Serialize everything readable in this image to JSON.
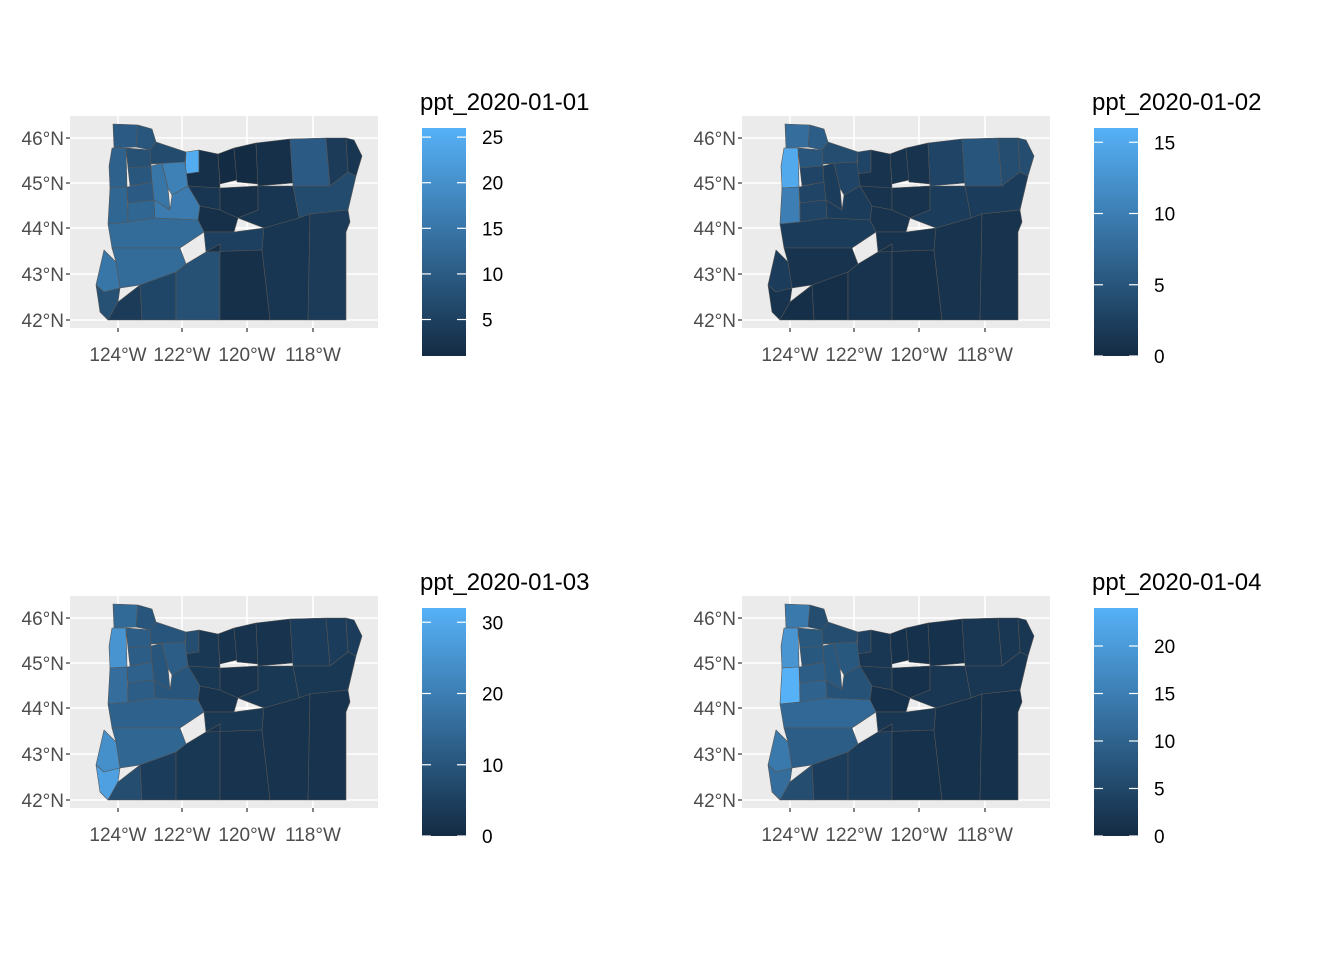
{
  "colors": {
    "panel_bg": "#EBEBEB",
    "grid": "#FFFFFF",
    "county_border": "#555555",
    "scale_low": "#132B43",
    "scale_high": "#56B1F7"
  },
  "chart_data": [
    {
      "type": "choropleth",
      "legend_title": "ppt_2020-01-01",
      "scale": {
        "min": 1,
        "max": 26,
        "breaks": [
          5,
          10,
          15,
          20,
          25
        ],
        "labels": [
          "5",
          "10",
          "15",
          "20",
          "25"
        ]
      },
      "y_ticks": [
        "46°N",
        "45°N",
        "44°N",
        "43°N",
        "42°N"
      ],
      "x_ticks": [
        "124°W",
        "122°W",
        "120°W",
        "118°W"
      ],
      "xlim": [
        -125,
        -116
      ],
      "ylim": [
        41.8,
        46.5
      ],
      "counties": [
        {
          "id": "clatsop",
          "value": 10
        },
        {
          "id": "columbia",
          "value": 9
        },
        {
          "id": "tillamook",
          "value": 11
        },
        {
          "id": "washington",
          "value": 8
        },
        {
          "id": "multnomah",
          "value": 7
        },
        {
          "id": "hood_river",
          "value": 25
        },
        {
          "id": "wasco",
          "value": 2
        },
        {
          "id": "sherman",
          "value": 1
        },
        {
          "id": "gilliam",
          "value": 1
        },
        {
          "id": "morrow",
          "value": 2
        },
        {
          "id": "umatilla",
          "value": 10
        },
        {
          "id": "union",
          "value": 4
        },
        {
          "id": "wallowa",
          "value": 3
        },
        {
          "id": "yamhill",
          "value": 9
        },
        {
          "id": "polk",
          "value": 10
        },
        {
          "id": "marion",
          "value": 15
        },
        {
          "id": "clackamas",
          "value": 17
        },
        {
          "id": "lincoln",
          "value": 12
        },
        {
          "id": "benton",
          "value": 12
        },
        {
          "id": "linn",
          "value": 16
        },
        {
          "id": "jefferson",
          "value": 3
        },
        {
          "id": "wheeler",
          "value": 2
        },
        {
          "id": "grant",
          "value": 3
        },
        {
          "id": "baker",
          "value": 7
        },
        {
          "id": "crook",
          "value": 2
        },
        {
          "id": "lane",
          "value": 13
        },
        {
          "id": "deschutes",
          "value": 5
        },
        {
          "id": "douglas",
          "value": 13
        },
        {
          "id": "coos",
          "value": 15
        },
        {
          "id": "curry",
          "value": 8
        },
        {
          "id": "josephine",
          "value": 4
        },
        {
          "id": "jackson",
          "value": 6
        },
        {
          "id": "klamath",
          "value": 8
        },
        {
          "id": "lake",
          "value": 2
        },
        {
          "id": "harney",
          "value": 3
        },
        {
          "id": "malheur",
          "value": 4
        }
      ]
    },
    {
      "type": "choropleth",
      "legend_title": "ppt_2020-01-02",
      "scale": {
        "min": 0,
        "max": 16,
        "breaks": [
          0,
          5,
          10,
          15
        ],
        "labels": [
          "0",
          "5",
          "10",
          "15"
        ]
      },
      "y_ticks": [
        "46°N",
        "45°N",
        "44°N",
        "43°N",
        "42°N"
      ],
      "x_ticks": [
        "124°W",
        "122°W",
        "120°W",
        "118°W"
      ],
      "xlim": [
        -125,
        -116
      ],
      "ylim": [
        41.8,
        46.5
      ],
      "counties": [
        {
          "id": "clatsop",
          "value": 8
        },
        {
          "id": "columbia",
          "value": 6
        },
        {
          "id": "tillamook",
          "value": 15
        },
        {
          "id": "washington",
          "value": 5
        },
        {
          "id": "multnomah",
          "value": 4
        },
        {
          "id": "hood_river",
          "value": 3
        },
        {
          "id": "wasco",
          "value": 1
        },
        {
          "id": "sherman",
          "value": 1
        },
        {
          "id": "gilliam",
          "value": 1
        },
        {
          "id": "morrow",
          "value": 3
        },
        {
          "id": "umatilla",
          "value": 5
        },
        {
          "id": "union",
          "value": 4
        },
        {
          "id": "wallowa",
          "value": 4
        },
        {
          "id": "yamhill",
          "value": 3
        },
        {
          "id": "polk",
          "value": 3
        },
        {
          "id": "marion",
          "value": 2
        },
        {
          "id": "clackamas",
          "value": 3
        },
        {
          "id": "lincoln",
          "value": 10
        },
        {
          "id": "benton",
          "value": 3
        },
        {
          "id": "linn",
          "value": 2
        },
        {
          "id": "jefferson",
          "value": 1
        },
        {
          "id": "wheeler",
          "value": 1
        },
        {
          "id": "grant",
          "value": 2
        },
        {
          "id": "baker",
          "value": 2
        },
        {
          "id": "crook",
          "value": 1
        },
        {
          "id": "lane",
          "value": 2
        },
        {
          "id": "deschutes",
          "value": 1
        },
        {
          "id": "douglas",
          "value": 1
        },
        {
          "id": "coos",
          "value": 2
        },
        {
          "id": "curry",
          "value": 1
        },
        {
          "id": "josephine",
          "value": 0.5
        },
        {
          "id": "jackson",
          "value": 0.5
        },
        {
          "id": "klamath",
          "value": 1
        },
        {
          "id": "lake",
          "value": 0.5
        },
        {
          "id": "harney",
          "value": 1
        },
        {
          "id": "malheur",
          "value": 1
        }
      ]
    },
    {
      "type": "choropleth",
      "legend_title": "ppt_2020-01-03",
      "scale": {
        "min": 0,
        "max": 32,
        "breaks": [
          0,
          10,
          20,
          30
        ],
        "labels": [
          "0",
          "10",
          "20",
          "30"
        ]
      },
      "y_ticks": [
        "46°N",
        "45°N",
        "44°N",
        "43°N",
        "42°N"
      ],
      "x_ticks": [
        "124°W",
        "122°W",
        "120°W",
        "118°W"
      ],
      "xlim": [
        -125,
        -116
      ],
      "ylim": [
        41.8,
        46.5
      ],
      "counties": [
        {
          "id": "clatsop",
          "value": 15
        },
        {
          "id": "columbia",
          "value": 10
        },
        {
          "id": "tillamook",
          "value": 25
        },
        {
          "id": "washington",
          "value": 12
        },
        {
          "id": "multnomah",
          "value": 10
        },
        {
          "id": "hood_river",
          "value": 8
        },
        {
          "id": "wasco",
          "value": 3
        },
        {
          "id": "sherman",
          "value": 2
        },
        {
          "id": "gilliam",
          "value": 2
        },
        {
          "id": "morrow",
          "value": 2
        },
        {
          "id": "umatilla",
          "value": 4
        },
        {
          "id": "union",
          "value": 4
        },
        {
          "id": "wallowa",
          "value": 4
        },
        {
          "id": "yamhill",
          "value": 12
        },
        {
          "id": "polk",
          "value": 13
        },
        {
          "id": "marion",
          "value": 10
        },
        {
          "id": "clackamas",
          "value": 12
        },
        {
          "id": "lincoln",
          "value": 16
        },
        {
          "id": "benton",
          "value": 12
        },
        {
          "id": "linn",
          "value": 10
        },
        {
          "id": "jefferson",
          "value": 3
        },
        {
          "id": "wheeler",
          "value": 2
        },
        {
          "id": "grant",
          "value": 3
        },
        {
          "id": "baker",
          "value": 3
        },
        {
          "id": "crook",
          "value": 2
        },
        {
          "id": "lane",
          "value": 13
        },
        {
          "id": "deschutes",
          "value": 3
        },
        {
          "id": "douglas",
          "value": 14
        },
        {
          "id": "coos",
          "value": 24
        },
        {
          "id": "curry",
          "value": 28
        },
        {
          "id": "josephine",
          "value": 8
        },
        {
          "id": "jackson",
          "value": 4
        },
        {
          "id": "klamath",
          "value": 3
        },
        {
          "id": "lake",
          "value": 2
        },
        {
          "id": "harney",
          "value": 2
        },
        {
          "id": "malheur",
          "value": 2
        }
      ]
    },
    {
      "type": "choropleth",
      "legend_title": "ppt_2020-01-04",
      "scale": {
        "min": 0,
        "max": 24,
        "breaks": [
          0,
          5,
          10,
          15,
          20
        ],
        "labels": [
          "0",
          "5",
          "10",
          "15",
          "20"
        ]
      },
      "y_ticks": [
        "46°N",
        "45°N",
        "44°N",
        "43°N",
        "42°N"
      ],
      "x_ticks": [
        "124°W",
        "122°W",
        "120°W",
        "118°W"
      ],
      "xlim": [
        -125,
        -116
      ],
      "ylim": [
        41.8,
        46.5
      ],
      "counties": [
        {
          "id": "clatsop",
          "value": 14
        },
        {
          "id": "columbia",
          "value": 6
        },
        {
          "id": "tillamook",
          "value": 19
        },
        {
          "id": "washington",
          "value": 8
        },
        {
          "id": "multnomah",
          "value": 6
        },
        {
          "id": "hood_river",
          "value": 4
        },
        {
          "id": "wasco",
          "value": 2
        },
        {
          "id": "sherman",
          "value": 1
        },
        {
          "id": "gilliam",
          "value": 1
        },
        {
          "id": "morrow",
          "value": 1
        },
        {
          "id": "umatilla",
          "value": 2
        },
        {
          "id": "union",
          "value": 2
        },
        {
          "id": "wallowa",
          "value": 2
        },
        {
          "id": "yamhill",
          "value": 8
        },
        {
          "id": "polk",
          "value": 9
        },
        {
          "id": "marion",
          "value": 8
        },
        {
          "id": "clackamas",
          "value": 8
        },
        {
          "id": "lincoln",
          "value": 24
        },
        {
          "id": "benton",
          "value": 10
        },
        {
          "id": "linn",
          "value": 7
        },
        {
          "id": "jefferson",
          "value": 2
        },
        {
          "id": "wheeler",
          "value": 1
        },
        {
          "id": "grant",
          "value": 2
        },
        {
          "id": "baker",
          "value": 2
        },
        {
          "id": "crook",
          "value": 1
        },
        {
          "id": "lane",
          "value": 11
        },
        {
          "id": "deschutes",
          "value": 2
        },
        {
          "id": "douglas",
          "value": 9
        },
        {
          "id": "coos",
          "value": 14
        },
        {
          "id": "curry",
          "value": 12
        },
        {
          "id": "josephine",
          "value": 6
        },
        {
          "id": "jackson",
          "value": 3
        },
        {
          "id": "klamath",
          "value": 3
        },
        {
          "id": "lake",
          "value": 1
        },
        {
          "id": "harney",
          "value": 1
        },
        {
          "id": "malheur",
          "value": 1
        }
      ]
    }
  ]
}
